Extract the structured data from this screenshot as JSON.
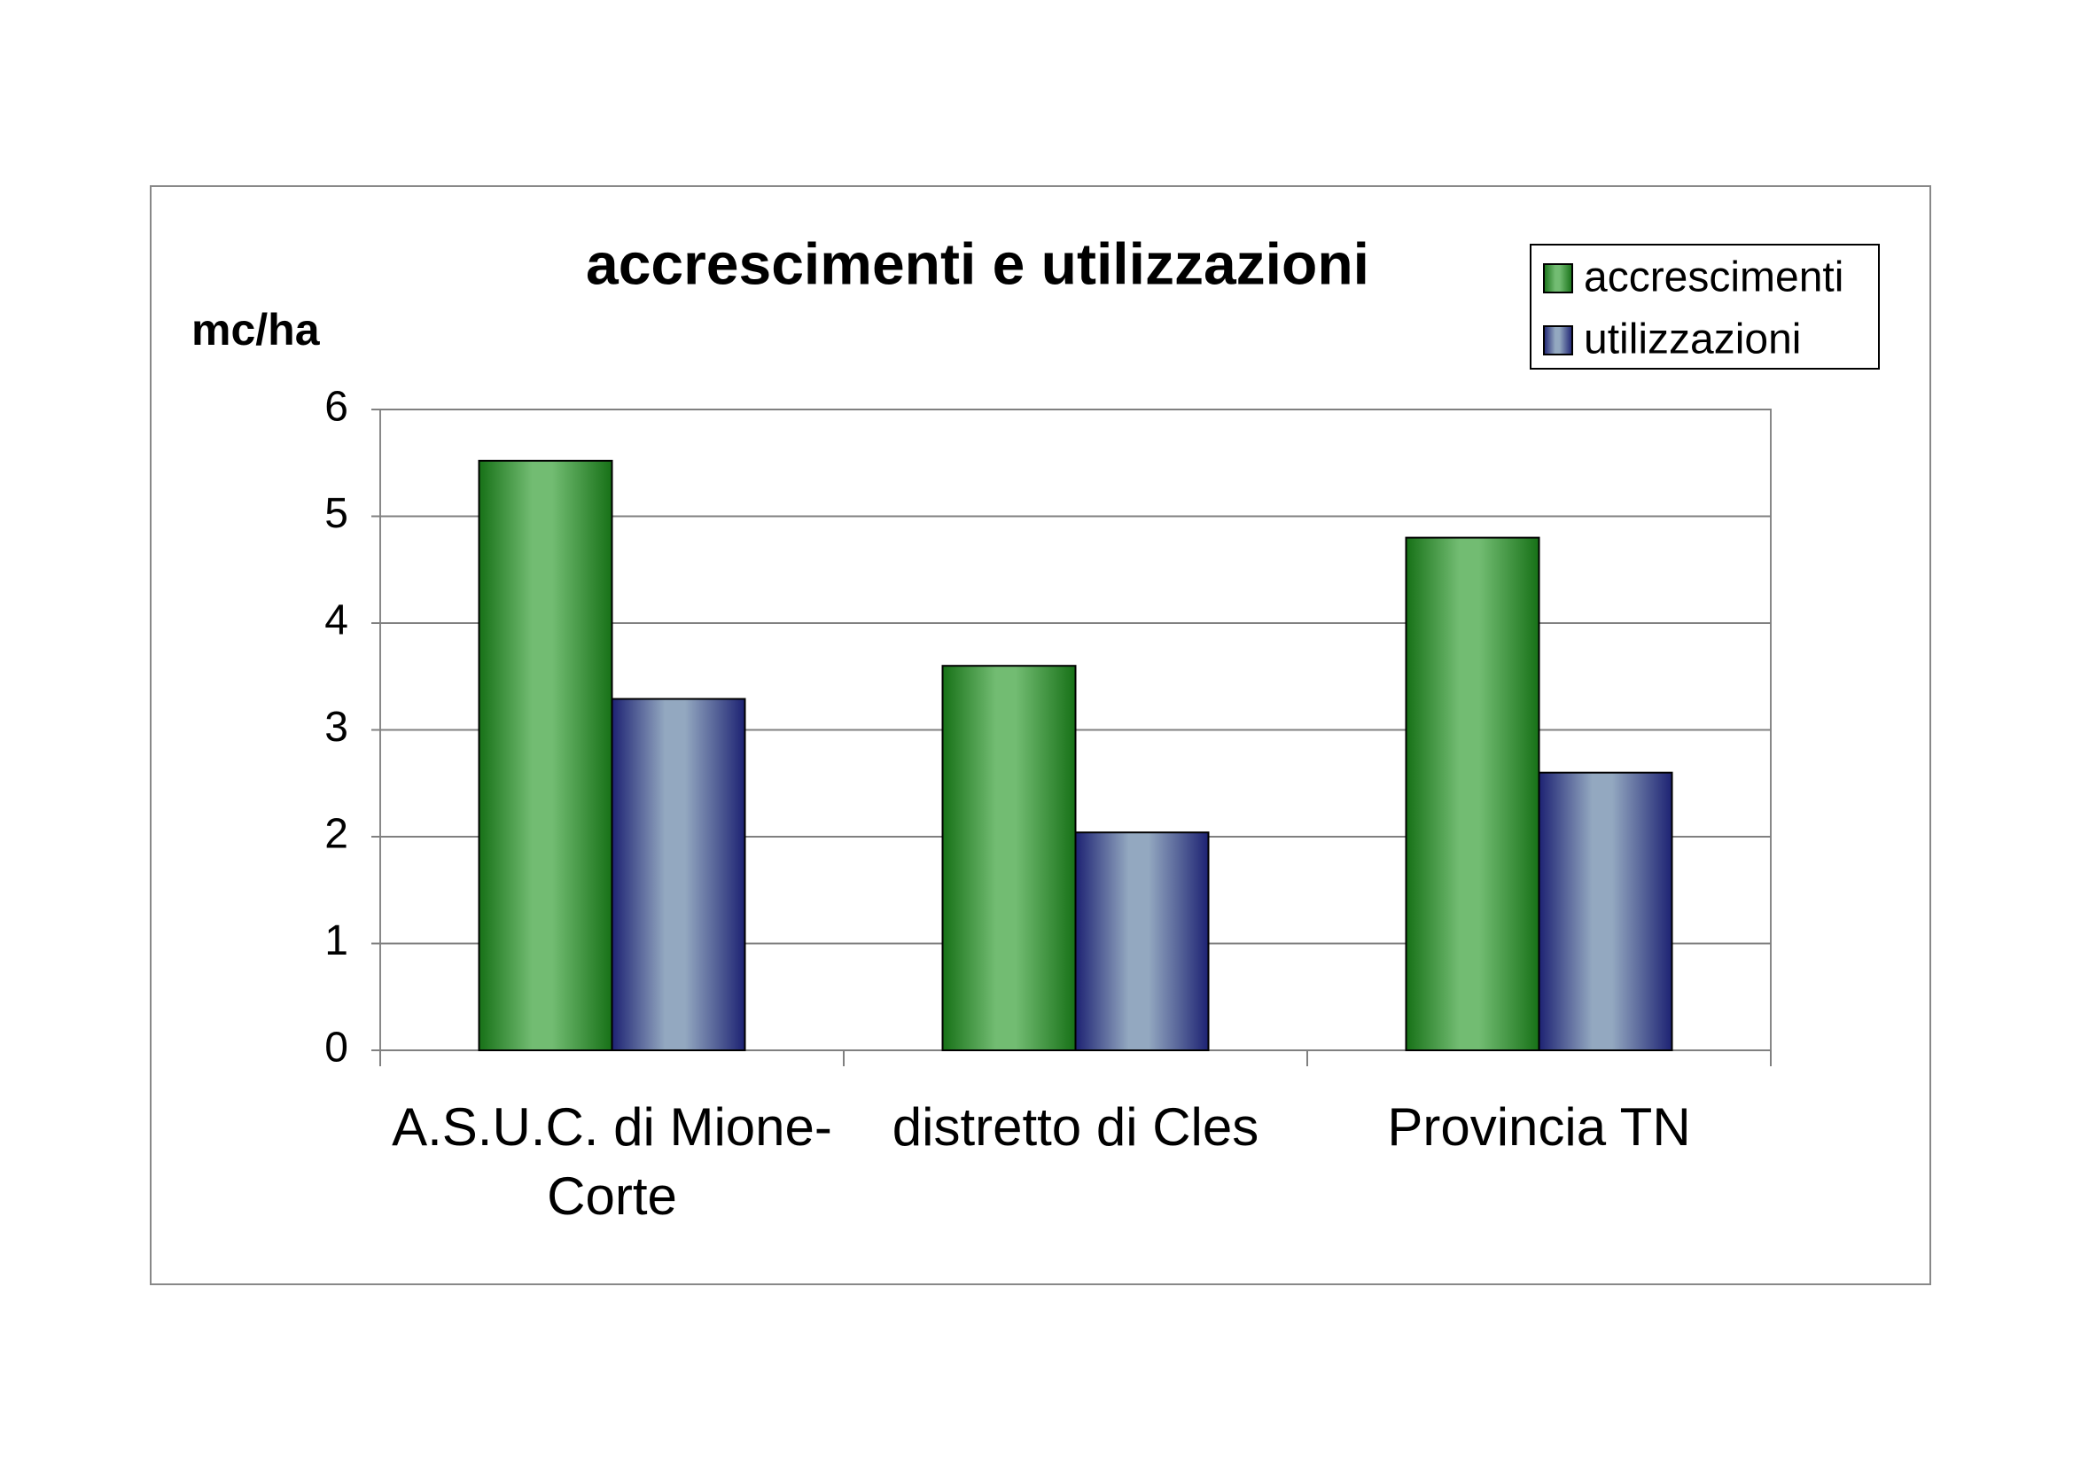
{
  "chart_data": {
    "type": "bar",
    "title": "accrescimenti e utilizzazioni",
    "y_label": "mc/ha",
    "categories": [
      "A.S.U.C. di Mione-Corte",
      "distretto di Cles",
      "Provincia TN"
    ],
    "series": [
      {
        "name": "accrescimenti",
        "color": "#72bc72",
        "values": [
          5.52,
          3.6,
          4.8
        ]
      },
      {
        "name": "utilizzazioni",
        "color": "#93a8c0",
        "values": [
          3.29,
          2.04,
          2.6
        ]
      }
    ],
    "ylim": [
      0,
      6
    ],
    "yticks": [
      0,
      1,
      2,
      3,
      4,
      5,
      6
    ],
    "grid": true,
    "legend": "top-right"
  }
}
